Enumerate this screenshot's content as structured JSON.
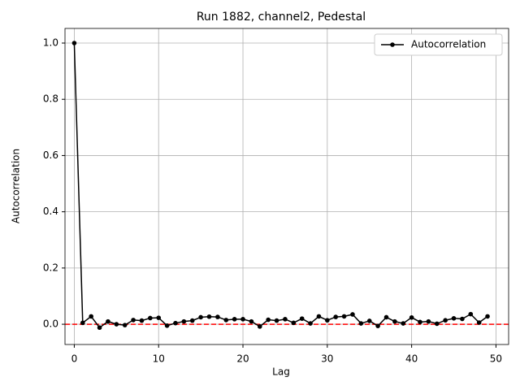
{
  "chart_data": {
    "type": "line",
    "title": "Run 1882, channel2, Pedestal",
    "x_label": "Lag",
    "y_label": "Autocorrelation",
    "x": [
      0,
      1,
      2,
      3,
      4,
      5,
      6,
      7,
      8,
      9,
      10,
      11,
      12,
      13,
      14,
      15,
      16,
      17,
      18,
      19,
      20,
      21,
      22,
      23,
      24,
      25,
      26,
      27,
      28,
      29,
      30,
      31,
      32,
      33,
      34,
      35,
      36,
      37,
      38,
      39,
      40,
      41,
      42,
      43,
      44,
      45,
      46,
      47,
      48,
      49
    ],
    "series": [
      {
        "name": "Autocorrelation",
        "color": "#000000",
        "values": [
          1.0,
          0.005,
          0.028,
          -0.012,
          0.01,
          0.0,
          -0.003,
          0.015,
          0.013,
          0.022,
          0.023,
          -0.005,
          0.004,
          0.01,
          0.013,
          0.025,
          0.027,
          0.026,
          0.015,
          0.018,
          0.018,
          0.01,
          -0.008,
          0.016,
          0.013,
          0.018,
          0.005,
          0.02,
          0.003,
          0.028,
          0.014,
          0.026,
          0.028,
          0.035,
          0.003,
          0.012,
          -0.006,
          0.025,
          0.01,
          0.003,
          0.024,
          0.008,
          0.01,
          0.002,
          0.014,
          0.021,
          0.019,
          0.036,
          0.006,
          0.028
        ]
      }
    ],
    "hline": {
      "value": 0,
      "color": "#ff0000"
    },
    "xlim": [
      -1.1,
      51.5
    ],
    "ylim": [
      -0.072,
      1.052
    ],
    "xticks": [
      0,
      10,
      20,
      30,
      40,
      50
    ],
    "yticks": [
      {
        "value": 0,
        "label": "0.0"
      },
      {
        "value": 0.2,
        "label": "0.2"
      },
      {
        "value": 0.4,
        "label": "0.4"
      },
      {
        "value": 0.6,
        "label": "0.6"
      },
      {
        "value": 0.8,
        "label": "0.8"
      },
      {
        "value": 1,
        "label": "1.0"
      }
    ],
    "grid": true,
    "legend": "upper right"
  }
}
